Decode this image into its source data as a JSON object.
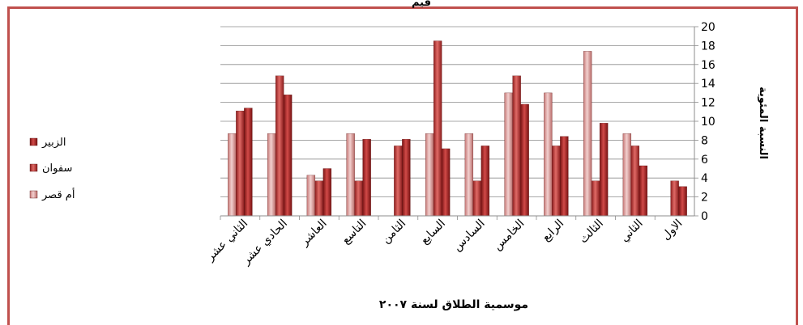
{
  "chart_data": {
    "type": "bar",
    "title": "قيم",
    "xlabel": "موسمية الطلاق لسنة ٢٠٠٧",
    "ylabel": "النسبة المئوية",
    "ylim": [
      0,
      20
    ],
    "yticks": [
      "0",
      "2",
      "4",
      "6",
      "8",
      "10",
      "12",
      "14",
      "16",
      "18",
      "20"
    ],
    "x_reversed": true,
    "grid": true,
    "legend_position": "left",
    "categories": [
      "الاول",
      "الثاني",
      "الثالث",
      "الرابع",
      "الخامس",
      "السادس",
      "السابع",
      "الثامن",
      "التاسع",
      "العاشر",
      "الحادي عشر",
      "الثاني عشر"
    ],
    "series": [
      {
        "name": "أم قصر",
        "color": "#d99594",
        "values": [
          0,
          8.7,
          17.4,
          13.0,
          13.0,
          8.7,
          8.7,
          0,
          8.7,
          4.3,
          8.7,
          8.7
        ]
      },
      {
        "name": "سفوان",
        "color": "#c0504d",
        "values": [
          3.7,
          7.4,
          3.7,
          7.4,
          14.8,
          3.7,
          18.5,
          7.4,
          3.7,
          3.7,
          14.8,
          11.1
        ]
      },
      {
        "name": "الزبير",
        "color": "#b22a2a",
        "values": [
          3.1,
          5.3,
          9.8,
          8.4,
          11.8,
          7.4,
          7.1,
          8.1,
          8.1,
          5.0,
          12.8,
          11.4
        ]
      }
    ],
    "legend_order": [
      "الزبير",
      "سفوان",
      "أم قصر"
    ]
  }
}
